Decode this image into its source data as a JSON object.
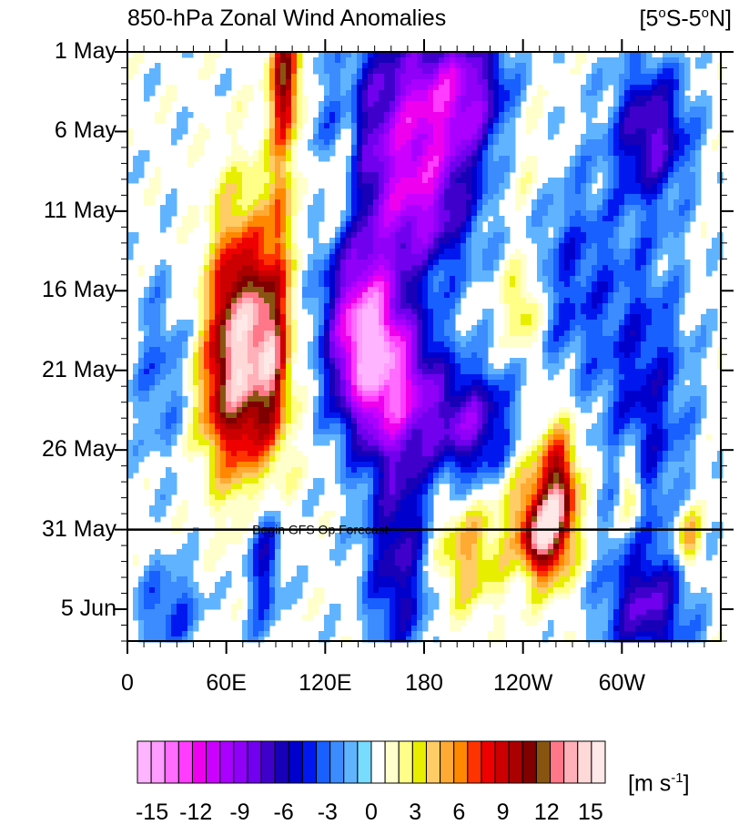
{
  "chart_data": {
    "type": "heatmap",
    "title": "850-hPa Zonal Wind Anomalies",
    "region": "[5°S-5°N]",
    "region_parts": [
      "[5",
      "o",
      "S-5",
      "o",
      "N]"
    ],
    "x_tick_labels": [
      "0",
      "60E",
      "120E",
      "180",
      "120W",
      "60W"
    ],
    "x_ticks_deg": [
      0,
      60,
      120,
      180,
      240,
      300
    ],
    "xlim": [
      0,
      360
    ],
    "y_tick_labels": [
      "1 May",
      "6 May",
      "11 May",
      "16 May",
      "21 May",
      "26 May",
      "31 May",
      "5 Jun"
    ],
    "y_ticks_day": [
      0,
      5,
      10,
      15,
      20,
      25,
      30,
      35
    ],
    "ylim": [
      0,
      37
    ],
    "forecast_line": {
      "day": 30,
      "label": "Begin GFS Op Forecast"
    },
    "colorbar": {
      "tick_labels": [
        "-15",
        "-12",
        "-9",
        "-6",
        "-3",
        "0",
        "3",
        "6",
        "9",
        "12",
        "15"
      ],
      "tick_values": [
        -15,
        -12,
        -9,
        -6,
        -3,
        0,
        3,
        6,
        9,
        12,
        15
      ],
      "units": "[m s",
      "units_sup": "-1",
      "units_end": "]",
      "colors": [
        "#ffb4ff",
        "#ff9cff",
        "#ff6cff",
        "#ff3cff",
        "#ee00ee",
        "#cc00ff",
        "#aa00ff",
        "#9000f8",
        "#7000ee",
        "#4000cc",
        "#1800b8",
        "#0000cc",
        "#0018f0",
        "#1860ff",
        "#3c8cff",
        "#60b4ff",
        "#78dcff",
        "#ffffff",
        "#ffffcc",
        "#ffff88",
        "#e8ee00",
        "#ffcc66",
        "#ffaa33",
        "#ff8800",
        "#ff3300",
        "#ee0000",
        "#cc0000",
        "#aa0000",
        "#800000",
        "#885511",
        "#ff7788",
        "#ffb0b8",
        "#ffd8d8",
        "#ffe8e8"
      ]
    },
    "anomalies": [
      {
        "lon": 75,
        "day": 19,
        "rlon": 14,
        "rday": 6,
        "amp": 13
      },
      {
        "lon": 88,
        "day": 18.5,
        "rlon": 6,
        "rday": 3.5,
        "amp": 6
      },
      {
        "lon": 60,
        "day": 17,
        "rlon": 9,
        "rday": 4.5,
        "amp": 5
      },
      {
        "lon": 52,
        "day": 22,
        "rlon": 10,
        "rday": 3,
        "amp": 4
      },
      {
        "lon": 96,
        "day": 1.5,
        "rlon": 7,
        "rday": 2.5,
        "amp": 9
      },
      {
        "lon": 95,
        "day": 5,
        "rlon": 5,
        "rday": 4,
        "amp": 4
      },
      {
        "lon": 92,
        "day": 10.5,
        "rlon": 4,
        "rday": 3,
        "amp": 4
      },
      {
        "lon": 133,
        "day": 5,
        "rlon": 5,
        "rday": 3,
        "amp": 3
      },
      {
        "lon": 126,
        "day": 9,
        "rlon": 10,
        "rday": 2,
        "amp": 3
      },
      {
        "lon": 143,
        "day": 17.5,
        "rlon": 16,
        "rday": 4,
        "amp": -13
      },
      {
        "lon": 165,
        "day": 21,
        "rlon": 20,
        "rday": 3.5,
        "amp": -9
      },
      {
        "lon": 210,
        "day": 23.5,
        "rlon": 18,
        "rday": 2.5,
        "amp": -8
      },
      {
        "lon": 165,
        "day": 5,
        "rlon": 30,
        "rday": 5,
        "amp": -8
      },
      {
        "lon": 205,
        "day": 2.5,
        "rlon": 25,
        "rday": 3,
        "amp": -8
      },
      {
        "lon": 180,
        "day": 10,
        "rlon": 22,
        "rday": 3,
        "amp": -6
      },
      {
        "lon": 165,
        "day": 31.5,
        "rlon": 14,
        "rday": 5,
        "amp": -7
      },
      {
        "lon": 82,
        "day": 31.5,
        "rlon": 8,
        "rday": 3.5,
        "amp": -6
      },
      {
        "lon": 318,
        "day": 5,
        "rlon": 16,
        "rday": 3,
        "amp": -8
      },
      {
        "lon": 315,
        "day": 22,
        "rlon": 18,
        "rday": 7,
        "amp": -5
      },
      {
        "lon": 270,
        "day": 14,
        "rlon": 20,
        "rday": 5,
        "amp": -4
      },
      {
        "lon": 245,
        "day": 28,
        "rlon": 14,
        "rday": 3,
        "amp": 4
      },
      {
        "lon": 262,
        "day": 28,
        "rlon": 8,
        "rday": 3,
        "amp": 11
      },
      {
        "lon": 250,
        "day": 30.5,
        "rlon": 8,
        "rday": 1.8,
        "amp": 10
      },
      {
        "lon": 205,
        "day": 31.5,
        "rlon": 16,
        "rday": 2.5,
        "amp": 5
      },
      {
        "lon": 340,
        "day": 30.5,
        "rlon": 6,
        "rday": 1.5,
        "amp": 6
      },
      {
        "lon": 305,
        "day": 27.5,
        "rlon": 5,
        "rday": 2,
        "amp": 5
      },
      {
        "lon": 240,
        "day": 16,
        "rlon": 8,
        "rday": 2,
        "amp": 5
      },
      {
        "lon": 25,
        "day": 35,
        "rlon": 14,
        "rday": 2,
        "amp": -4
      },
      {
        "lon": 315,
        "day": 35,
        "rlon": 18,
        "rday": 2.5,
        "amp": -7
      },
      {
        "lon": 20,
        "day": 20,
        "rlon": 12,
        "rday": 4,
        "amp": -3
      },
      {
        "lon": 240,
        "day": 5,
        "rlon": 14,
        "rday": 4,
        "amp": 3
      }
    ]
  }
}
